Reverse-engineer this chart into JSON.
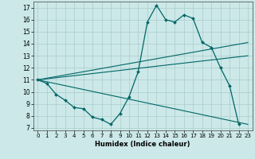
{
  "xlabel": "Humidex (Indice chaleur)",
  "xlim": [
    -0.5,
    23.5
  ],
  "ylim": [
    6.8,
    17.5
  ],
  "yticks": [
    7,
    8,
    9,
    10,
    11,
    12,
    13,
    14,
    15,
    16,
    17
  ],
  "xticks": [
    0,
    1,
    2,
    3,
    4,
    5,
    6,
    7,
    8,
    9,
    10,
    11,
    12,
    13,
    14,
    15,
    16,
    17,
    18,
    19,
    20,
    21,
    22,
    23
  ],
  "bg_color": "#cce8e8",
  "grid_color": "#aacccc",
  "line_color": "#006666",
  "main_curve": {
    "x": [
      0,
      1,
      2,
      3,
      4,
      5,
      6,
      7,
      8,
      9,
      10,
      11,
      12,
      13,
      14,
      15,
      16,
      17,
      18,
      19,
      20,
      21,
      22
    ],
    "y": [
      11.0,
      10.7,
      9.8,
      9.3,
      8.7,
      8.6,
      7.9,
      7.7,
      7.3,
      8.2,
      9.6,
      11.7,
      15.8,
      17.2,
      16.0,
      15.8,
      16.4,
      16.1,
      14.1,
      13.7,
      12.0,
      10.5,
      7.3
    ]
  },
  "straight_lines": [
    {
      "x": [
        0,
        23
      ],
      "y": [
        11.0,
        14.1
      ]
    },
    {
      "x": [
        0,
        23
      ],
      "y": [
        11.0,
        13.0
      ]
    },
    {
      "x": [
        0,
        23
      ],
      "y": [
        11.0,
        7.3
      ]
    }
  ]
}
